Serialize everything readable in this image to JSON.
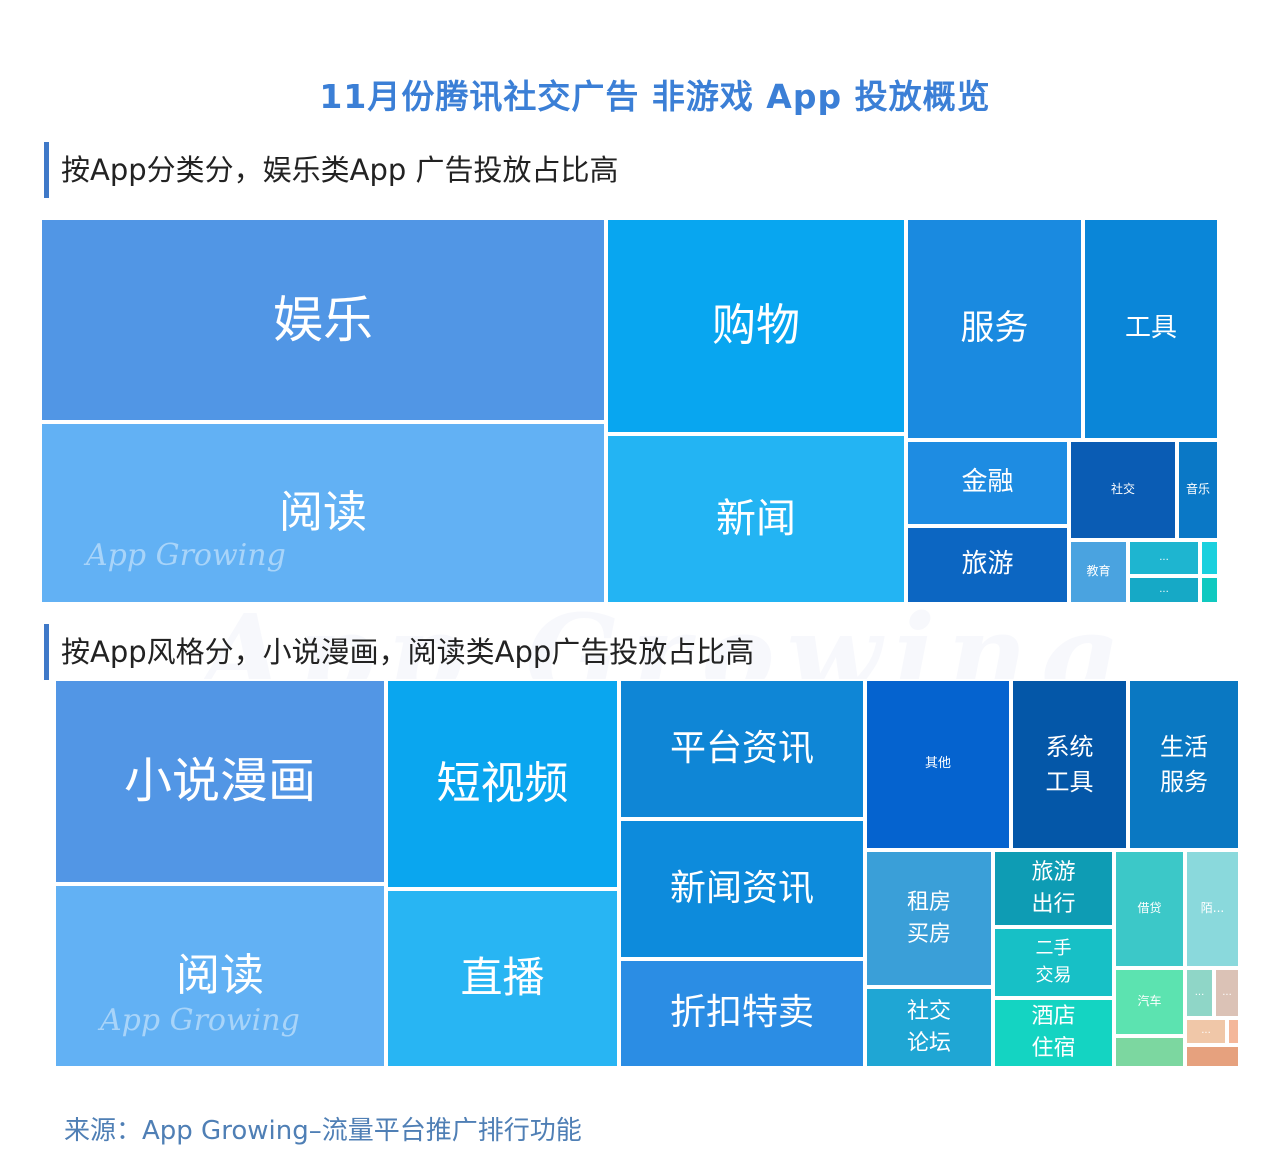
{
  "title": "11月份腾讯社交广告 非游戏 App 投放概览",
  "source": "来源：App Growing–流量平台推广排行功能",
  "watermark": "App Growing",
  "chart_data": [
    {
      "type": "treemap",
      "title": "按App分类分，娱乐类App 广告投放占比高",
      "categories": [
        "娱乐",
        "阅读",
        "购物",
        "新闻",
        "服务",
        "工具",
        "金融",
        "社交",
        "音乐",
        "旅游",
        "教育",
        "...",
        "...",
        "",
        ""
      ],
      "colors": [
        "#5196e5",
        "#62b1f4",
        "#08a6f0",
        "#23b4f3",
        "#1a8ae0",
        "#0a86d8",
        "#1e8ce2",
        "#0a5cb4",
        "#0a78c6",
        "#0c66c2",
        "#4aa3e0",
        "#1eb5d0",
        "#16a9c6",
        "#1ad0de",
        "#10c9c0"
      ]
    },
    {
      "type": "treemap",
      "title": "按App风格分，小说漫画，阅读类App广告投放占比高",
      "categories": [
        "小说漫画",
        "阅读",
        "短视频",
        "直播",
        "平台资讯",
        "新闻资讯",
        "折扣特卖",
        "其他",
        "系统\n工具",
        "生活\n服务",
        "租房\n买房",
        "社交\n论坛",
        "旅游\n出行",
        "二手\n交易",
        "酒店\n住宿",
        "借贷",
        "陌...",
        "汽车",
        "...",
        "...",
        "...",
        "",
        "",
        ""
      ],
      "colors": [
        "#5296e5",
        "#62b1f4",
        "#0aa6ef",
        "#28b5f3",
        "#0f86d6",
        "#0d8bdc",
        "#2b8de4",
        "#0563cf",
        "#0457a8",
        "#0a78c2",
        "#3a9fd8",
        "#1fa6d4",
        "#0e9cb4",
        "#17c0c6",
        "#14d4c2",
        "#3cc8c8",
        "#8ad9dc",
        "#5ce3b0",
        "#8fd6c7",
        "#dbc2b6",
        "#f0c7a8",
        "#f4b79a",
        "#e6a17e",
        "#7cd7a0"
      ]
    }
  ]
}
